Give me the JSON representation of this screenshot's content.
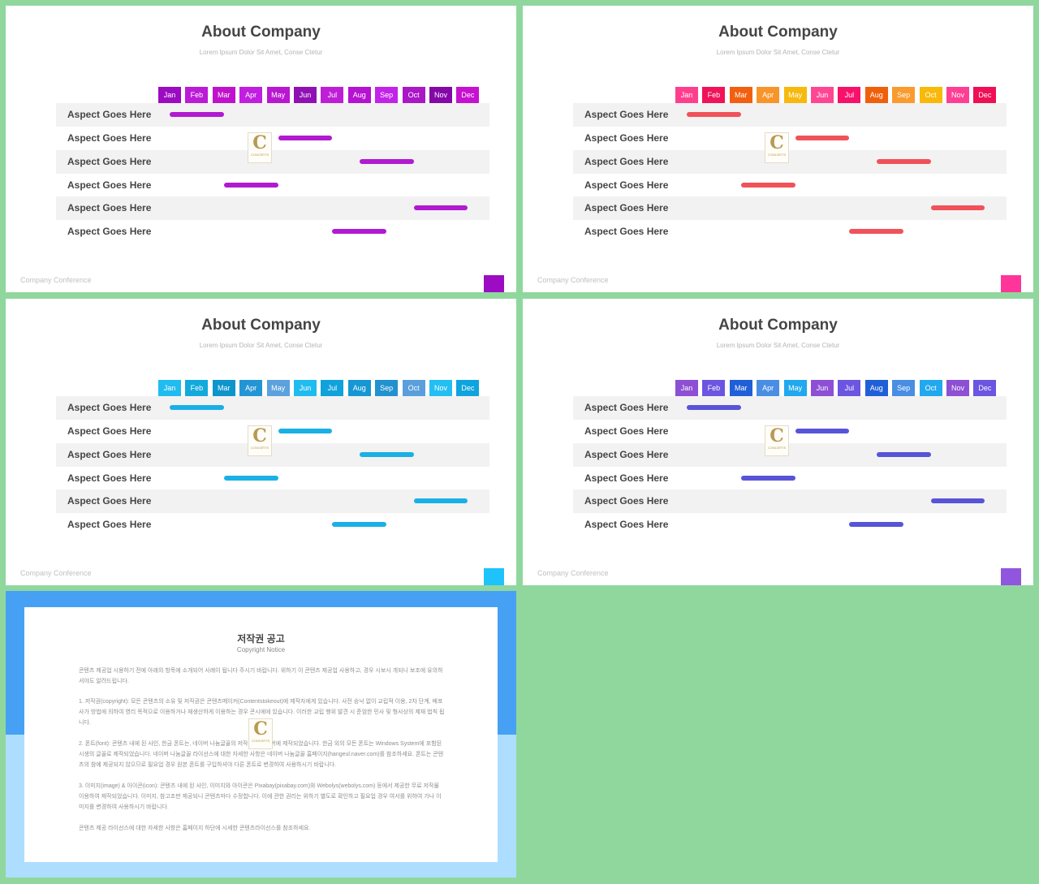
{
  "months": [
    "Jan",
    "Feb",
    "Mar",
    "Apr",
    "May",
    "Jun",
    "Jul",
    "Aug",
    "Sep",
    "Oct",
    "Nov",
    "Dec"
  ],
  "slides": [
    {
      "title": "About Company",
      "subtitle": "Lorem Ipsum Dolor Sit Amet, Conse Ctetur",
      "footer": "Company Conference",
      "month_colors": [
        "#9b0bc0",
        "#bb1ad6",
        "#c012cc",
        "#c01ee0",
        "#b917d1",
        "#8f11b3",
        "#be1fd6",
        "#b512d1",
        "#c223e8",
        "#a917c6",
        "#8408a8",
        "#c611d1"
      ],
      "bar_color": "#b11ad1",
      "corner_color": "#9c0cc2",
      "rows": [
        {
          "label": "Aspect Goes Here",
          "start": 1,
          "end": 3
        },
        {
          "label": "Aspect Goes Here",
          "start": 5,
          "end": 7
        },
        {
          "label": "Aspect Goes Here",
          "start": 8,
          "end": 10
        },
        {
          "label": "Aspect Goes Here",
          "start": 3,
          "end": 5
        },
        {
          "label": "Aspect Goes Here",
          "start": 10,
          "end": 12
        },
        {
          "label": "Aspect Goes Here",
          "start": 7,
          "end": 9
        }
      ]
    },
    {
      "title": "About Company",
      "subtitle": "Lorem Ipsum Dolor Sit Amet, Conse Ctetur",
      "footer": "Company Conference",
      "month_colors": [
        "#ff3f8e",
        "#f0135a",
        "#f2600f",
        "#f7952a",
        "#f7b90d",
        "#ff4693",
        "#f8116a",
        "#f0600b",
        "#fa9b2f",
        "#f8b909",
        "#ff3f94",
        "#ef0f55"
      ],
      "bar_color": "#f05259",
      "corner_color": "#ff3599",
      "rows": [
        {
          "label": "Aspect Goes Here",
          "start": 1,
          "end": 3
        },
        {
          "label": "Aspect Goes Here",
          "start": 5,
          "end": 7
        },
        {
          "label": "Aspect Goes Here",
          "start": 8,
          "end": 10
        },
        {
          "label": "Aspect Goes Here",
          "start": 3,
          "end": 5
        },
        {
          "label": "Aspect Goes Here",
          "start": 10,
          "end": 12
        },
        {
          "label": "Aspect Goes Here",
          "start": 7,
          "end": 9
        }
      ]
    },
    {
      "title": "About Company",
      "subtitle": "Lorem Ipsum Dolor Sit Amet, Conse Ctetur",
      "footer": "Company Conference",
      "month_colors": [
        "#21bcef",
        "#12a9dc",
        "#0e95cc",
        "#2495d4",
        "#5ba1dd",
        "#21bcef",
        "#10a2db",
        "#1697d4",
        "#2291cf",
        "#5a9fdc",
        "#24bff2",
        "#10a4de"
      ],
      "bar_color": "#1ab0e6",
      "corner_color": "#1ec3fb",
      "rows": [
        {
          "label": "Aspect Goes Here",
          "start": 1,
          "end": 3
        },
        {
          "label": "Aspect Goes Here",
          "start": 5,
          "end": 7
        },
        {
          "label": "Aspect Goes Here",
          "start": 8,
          "end": 10
        },
        {
          "label": "Aspect Goes Here",
          "start": 3,
          "end": 5
        },
        {
          "label": "Aspect Goes Here",
          "start": 10,
          "end": 12
        },
        {
          "label": "Aspect Goes Here",
          "start": 7,
          "end": 9
        }
      ]
    },
    {
      "title": "About Company",
      "subtitle": "Lorem Ipsum Dolor Sit Amet, Conse Ctetur",
      "footer": "Company Conference",
      "month_colors": [
        "#8d4fd4",
        "#6b55e1",
        "#1f5fd7",
        "#4a8ee3",
        "#21a8ee",
        "#8d4fd4",
        "#6b55e1",
        "#1f5fd7",
        "#4a8ee3",
        "#21a8ee",
        "#8d4fd4",
        "#6b55e1"
      ],
      "bar_color": "#5754d8",
      "corner_color": "#9056dd",
      "rows": [
        {
          "label": "Aspect Goes Here",
          "start": 1,
          "end": 3
        },
        {
          "label": "Aspect Goes Here",
          "start": 5,
          "end": 7
        },
        {
          "label": "Aspect Goes Here",
          "start": 8,
          "end": 10
        },
        {
          "label": "Aspect Goes Here",
          "start": 3,
          "end": 5
        },
        {
          "label": "Aspect Goes Here",
          "start": 10,
          "end": 12
        },
        {
          "label": "Aspect Goes Here",
          "start": 7,
          "end": 9
        }
      ]
    }
  ],
  "logo": {
    "letter": "C",
    "text": "CONCERTS"
  },
  "notice": {
    "title": "저작권 공고",
    "subtitle": "Copyright Notice",
    "paragraphs": [
      "콘텐츠 제공업 시용하기 전에 아래의 항목에 소개되어 사례이 됩니다 주시기 바랍니다. 위하기 이 콘텐츠 제공업 사용하고, 경우 시보시 개되니 보조에 유의하셔야도 알려드립니다.",
      "1. 저작권(copyright): 모든 콘텐츠의 소유 및 저작권은 콘텐츠메이커(Contentstokeout)에 제작자에게 있습니다. 사전 승낙 없이 교립적 이용, 2차 단계, 배포 사가 방법에 의하여 영리 목적으로 이용하거나 재생산하게 이용하는 경우 콘시에에 있습니다. 이러한 교립 행위 발견 시 준엄한 민사 및 형사상의 제재 법칙 됩니다.",
      "2. 폰트(font): 콘텐츠 내에 된 사인, 한금 폰트는, 네이버 나눔글꼴의 저작권은 네이버에 제작되었습니다. 한금 외의 모든 폰트는 Windows System에 포함된 시생의 글꼴로 제작되었습니다. 네이버 나눔글꼴 라이선스에 대한 자세한 사항은 네이버 나눔글꼴 홈페이지(hangeul.naver.com)를 참조하세요. 폰트는 콘텐츠의 참예 제공되지 않으므로 필요업 경우 원본 폰트를 구입하셔야 다른 폰트로 변경하여 사용하시기 바랍니다.",
      "3. 이미지(image) & 아이콘(icon): 콘텐츠 내에 된 사인, 이미지와 아이콘은 Pixabay(pixabay.com)와 Webolys(webolys.com) 등에서 제공한 무료 저작물 이용하여 제작되었습니다. 이미지, 참고조판 제공되니 콘텐츠마다 수정합니다. 이에 관한 권리는 위하기 별도로 확인하고 필요업 경우 여서를 위하여 가나 이미지를 변경하여 사용하시기 바랍니다.",
      "콘텐츠 제공 라이선스에 대한 자세한 사항은 홈페이지 하단에 시세한 콘텐츠라이선스를 참조하세요."
    ]
  }
}
